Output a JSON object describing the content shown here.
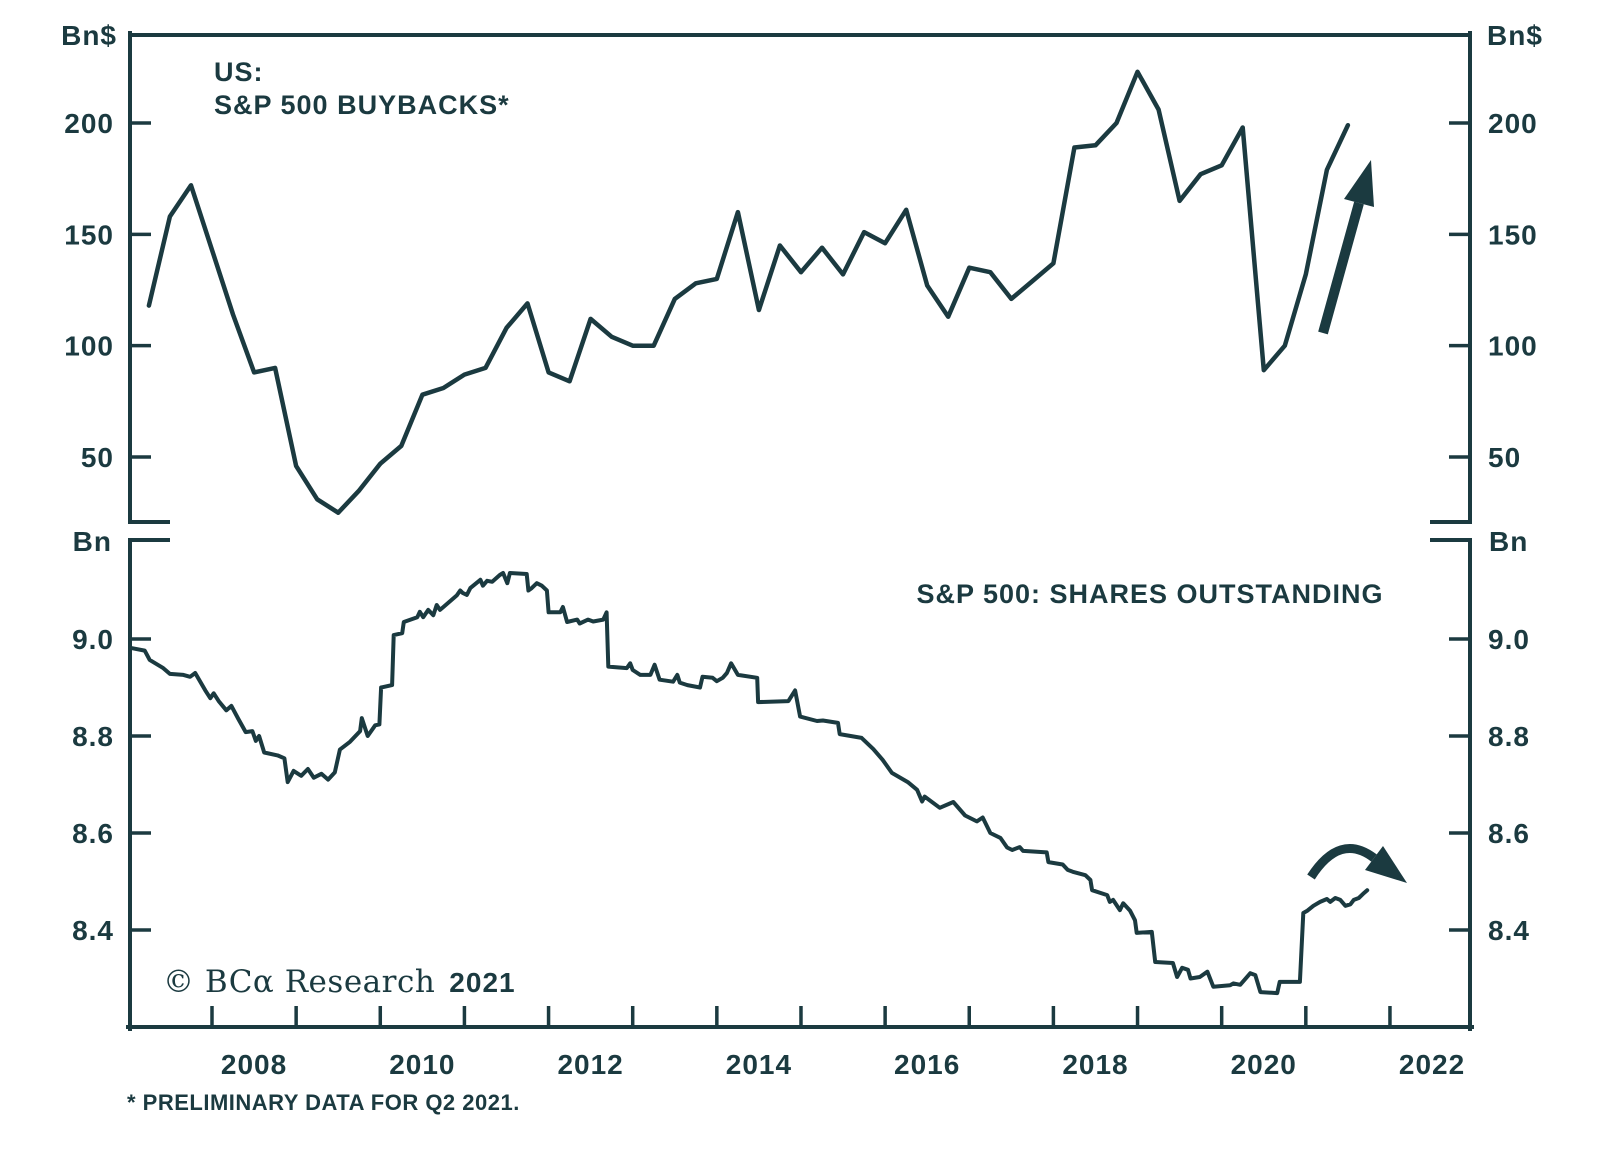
{
  "page": {
    "background": "#ffffff",
    "ink_color": "#1b3a40"
  },
  "branding": {
    "copyright_serif": "© BCα Research",
    "copyright_year": "2021"
  },
  "footnote": "* PRELIMINARY DATA FOR Q2 2021.",
  "x_axis": {
    "tick_years": [
      2008,
      2009,
      2010,
      2011,
      2012,
      2013,
      2014,
      2015,
      2016,
      2017,
      2018,
      2019,
      2020,
      2021,
      2022
    ],
    "year_labels": [
      "2008",
      "2010",
      "2012",
      "2014",
      "2016",
      "2018",
      "2020",
      "2022"
    ],
    "range": [
      2007.02,
      2022.95
    ],
    "grid": "off"
  },
  "chart_data": [
    {
      "panel": "top",
      "type": "line",
      "title_line1": "US:",
      "title_line2": "S&P 500 BUYBACKS*",
      "unit_label": "Bn$",
      "series_name": "S&P 500 quarterly buybacks, billions of dollars",
      "yticks": [
        "200",
        "150",
        "100",
        "50"
      ],
      "ylim": [
        20,
        240
      ],
      "x_start": 2007.25,
      "x_step": 0.25,
      "values": [
        118,
        158,
        172,
        143,
        114,
        88,
        90,
        46,
        31,
        25,
        35,
        47,
        55,
        78,
        81,
        87,
        90,
        108,
        119,
        88,
        84,
        112,
        104,
        100,
        100,
        121,
        128,
        130,
        160,
        116,
        145,
        133,
        144,
        132,
        151,
        146,
        161,
        127,
        113,
        135,
        133,
        121,
        129,
        137,
        189,
        190,
        200,
        223,
        206,
        165,
        177,
        181,
        198,
        89,
        100,
        132,
        179,
        199
      ],
      "annotation": {
        "type": "straight-up-arrow"
      }
    },
    {
      "panel": "bottom",
      "type": "line",
      "title": "S&P 500: SHARES OUTSTANDING",
      "unit_label": "Bn",
      "series_name": "S&P 500 shares outstanding, billions",
      "yticks": [
        "9.0",
        "8.8",
        "8.6",
        "8.4"
      ],
      "ylim": [
        8.2,
        9.2
      ],
      "points": [
        [
          2007.05,
          8.981
        ],
        [
          2007.2,
          8.976
        ],
        [
          2007.26,
          8.957
        ],
        [
          2007.42,
          8.94
        ],
        [
          2007.5,
          8.928
        ],
        [
          2007.66,
          8.926
        ],
        [
          2007.74,
          8.922
        ],
        [
          2007.8,
          8.93
        ],
        [
          2007.92,
          8.894
        ],
        [
          2007.98,
          8.878
        ],
        [
          2008.02,
          8.888
        ],
        [
          2008.08,
          8.872
        ],
        [
          2008.17,
          8.853
        ],
        [
          2008.23,
          8.862
        ],
        [
          2008.31,
          8.836
        ],
        [
          2008.4,
          8.808
        ],
        [
          2008.48,
          8.81
        ],
        [
          2008.52,
          8.79
        ],
        [
          2008.56,
          8.8
        ],
        [
          2008.62,
          8.766
        ],
        [
          2008.78,
          8.76
        ],
        [
          2008.86,
          8.754
        ],
        [
          2008.9,
          8.705
        ],
        [
          2008.97,
          8.728
        ],
        [
          2009.06,
          8.718
        ],
        [
          2009.14,
          8.732
        ],
        [
          2009.21,
          8.714
        ],
        [
          2009.3,
          8.722
        ],
        [
          2009.38,
          8.71
        ],
        [
          2009.46,
          8.725
        ],
        [
          2009.52,
          8.772
        ],
        [
          2009.64,
          8.788
        ],
        [
          2009.76,
          8.81
        ],
        [
          2009.78,
          8.837
        ],
        [
          2009.85,
          8.8
        ],
        [
          2009.94,
          8.822
        ],
        [
          2009.99,
          8.824
        ],
        [
          2010.01,
          8.9
        ],
        [
          2010.14,
          8.905
        ],
        [
          2010.16,
          9.008
        ],
        [
          2010.26,
          9.012
        ],
        [
          2010.28,
          9.035
        ],
        [
          2010.44,
          9.045
        ],
        [
          2010.47,
          9.056
        ],
        [
          2010.51,
          9.045
        ],
        [
          2010.57,
          9.06
        ],
        [
          2010.63,
          9.049
        ],
        [
          2010.67,
          9.07
        ],
        [
          2010.71,
          9.06
        ],
        [
          2010.75,
          9.066
        ],
        [
          2010.91,
          9.09
        ],
        [
          2010.95,
          9.1
        ],
        [
          2010.98,
          9.095
        ],
        [
          2011.03,
          9.091
        ],
        [
          2011.07,
          9.105
        ],
        [
          2011.19,
          9.122
        ],
        [
          2011.22,
          9.11
        ],
        [
          2011.27,
          9.12
        ],
        [
          2011.33,
          9.118
        ],
        [
          2011.42,
          9.132
        ],
        [
          2011.46,
          9.136
        ],
        [
          2011.51,
          9.115
        ],
        [
          2011.54,
          9.136
        ],
        [
          2011.74,
          9.134
        ],
        [
          2011.76,
          9.1
        ],
        [
          2011.8,
          9.105
        ],
        [
          2011.86,
          9.115
        ],
        [
          2011.92,
          9.11
        ],
        [
          2011.98,
          9.1
        ],
        [
          2012.0,
          9.055
        ],
        [
          2012.14,
          9.055
        ],
        [
          2012.17,
          9.066
        ],
        [
          2012.22,
          9.035
        ],
        [
          2012.34,
          9.04
        ],
        [
          2012.37,
          9.032
        ],
        [
          2012.47,
          9.04
        ],
        [
          2012.53,
          9.036
        ],
        [
          2012.65,
          9.04
        ],
        [
          2012.69,
          9.055
        ],
        [
          2012.71,
          8.943
        ],
        [
          2012.93,
          8.94
        ],
        [
          2012.97,
          8.95
        ],
        [
          2013.0,
          8.936
        ],
        [
          2013.09,
          8.926
        ],
        [
          2013.21,
          8.926
        ],
        [
          2013.26,
          8.947
        ],
        [
          2013.32,
          8.916
        ],
        [
          2013.48,
          8.912
        ],
        [
          2013.53,
          8.926
        ],
        [
          2013.56,
          8.91
        ],
        [
          2013.65,
          8.905
        ],
        [
          2013.8,
          8.9
        ],
        [
          2013.83,
          8.922
        ],
        [
          2013.95,
          8.92
        ],
        [
          2014.0,
          8.913
        ],
        [
          2014.07,
          8.92
        ],
        [
          2014.12,
          8.93
        ],
        [
          2014.17,
          8.95
        ],
        [
          2014.25,
          8.926
        ],
        [
          2014.48,
          8.92
        ],
        [
          2014.49,
          8.87
        ],
        [
          2014.85,
          8.872
        ],
        [
          2014.93,
          8.894
        ],
        [
          2014.99,
          8.84
        ],
        [
          2015.19,
          8.831
        ],
        [
          2015.26,
          8.832
        ],
        [
          2015.44,
          8.827
        ],
        [
          2015.46,
          8.804
        ],
        [
          2015.72,
          8.796
        ],
        [
          2015.86,
          8.773
        ],
        [
          2015.97,
          8.751
        ],
        [
          2016.08,
          8.724
        ],
        [
          2016.27,
          8.705
        ],
        [
          2016.38,
          8.689
        ],
        [
          2016.44,
          8.665
        ],
        [
          2016.47,
          8.675
        ],
        [
          2016.65,
          8.652
        ],
        [
          2016.81,
          8.664
        ],
        [
          2016.95,
          8.636
        ],
        [
          2017.09,
          8.624
        ],
        [
          2017.16,
          8.632
        ],
        [
          2017.25,
          8.6
        ],
        [
          2017.37,
          8.59
        ],
        [
          2017.45,
          8.57
        ],
        [
          2017.51,
          8.565
        ],
        [
          2017.6,
          8.571
        ],
        [
          2017.64,
          8.563
        ],
        [
          2017.92,
          8.56
        ],
        [
          2017.94,
          8.54
        ],
        [
          2018.11,
          8.535
        ],
        [
          2018.17,
          8.524
        ],
        [
          2018.23,
          8.52
        ],
        [
          2018.38,
          8.513
        ],
        [
          2018.44,
          8.503
        ],
        [
          2018.46,
          8.482
        ],
        [
          2018.64,
          8.472
        ],
        [
          2018.67,
          8.458
        ],
        [
          2018.71,
          8.462
        ],
        [
          2018.79,
          8.441
        ],
        [
          2018.83,
          8.455
        ],
        [
          2018.91,
          8.44
        ],
        [
          2018.97,
          8.42
        ],
        [
          2018.99,
          8.394
        ],
        [
          2019.17,
          8.396
        ],
        [
          2019.21,
          8.334
        ],
        [
          2019.42,
          8.332
        ],
        [
          2019.47,
          8.303
        ],
        [
          2019.53,
          8.322
        ],
        [
          2019.6,
          8.318
        ],
        [
          2019.63,
          8.3
        ],
        [
          2019.74,
          8.303
        ],
        [
          2019.83,
          8.314
        ],
        [
          2019.9,
          8.283
        ],
        [
          2020.1,
          8.286
        ],
        [
          2020.14,
          8.29
        ],
        [
          2020.22,
          8.287
        ],
        [
          2020.34,
          8.311
        ],
        [
          2020.4,
          8.307
        ],
        [
          2020.46,
          8.272
        ],
        [
          2020.66,
          8.27
        ],
        [
          2020.69,
          8.293
        ],
        [
          2020.93,
          8.293
        ],
        [
          2020.97,
          8.435
        ],
        [
          2021.02,
          8.44
        ],
        [
          2021.09,
          8.45
        ],
        [
          2021.17,
          8.458
        ],
        [
          2021.25,
          8.464
        ],
        [
          2021.29,
          8.458
        ],
        [
          2021.35,
          8.466
        ],
        [
          2021.41,
          8.462
        ],
        [
          2021.47,
          8.45
        ],
        [
          2021.53,
          8.453
        ],
        [
          2021.57,
          8.462
        ],
        [
          2021.63,
          8.466
        ],
        [
          2021.69,
          8.476
        ],
        [
          2021.73,
          8.482
        ]
      ],
      "annotation": {
        "type": "curved-rollover-arrow"
      }
    }
  ]
}
